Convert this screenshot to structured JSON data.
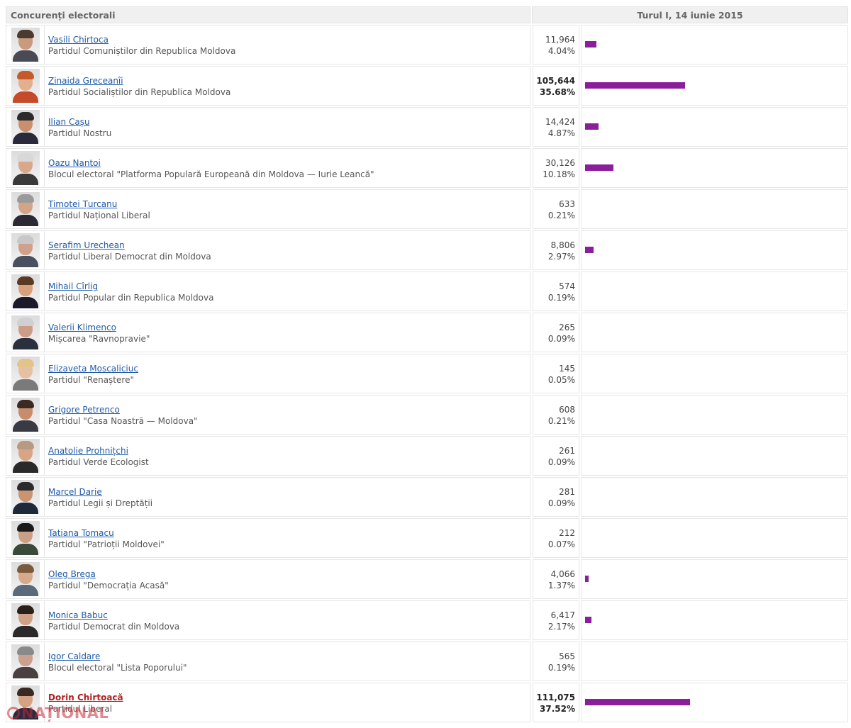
{
  "header": {
    "col_candidates": "Concurenți electorali",
    "col_round": "Turul I, 14 iunie 2015"
  },
  "accent_color": "#8b1e9b",
  "candidates": [
    {
      "name": "Vasili Chirtoca",
      "party": "Partidul Comuniștilor din Republica Moldova",
      "votes": "11,964",
      "percent": "4.04%",
      "share": 4.04,
      "bold": false
    },
    {
      "name": "Zinaida Greceanîi",
      "party": "Partidul Socialiștilor din Republica Moldova",
      "votes": "105,644",
      "percent": "35.68%",
      "share": 35.68,
      "bold": true
    },
    {
      "name": "Ilian Cașu",
      "party": "Partidul Nostru",
      "votes": "14,424",
      "percent": "4.87%",
      "share": 4.87,
      "bold": false
    },
    {
      "name": "Oazu Nantoi",
      "party": "Blocul electoral \"Platforma Populară Europeană din Moldova — Iurie Leancă\"",
      "votes": "30,126",
      "percent": "10.18%",
      "share": 10.18,
      "bold": false
    },
    {
      "name": "Timotei Țurcanu",
      "party": "Partidul Național Liberal",
      "votes": "633",
      "percent": "0.21%",
      "share": 0.21,
      "bold": false
    },
    {
      "name": "Serafim Urechean",
      "party": "Partidul Liberal Democrat din Moldova",
      "votes": "8,806",
      "percent": "2.97%",
      "share": 2.97,
      "bold": false
    },
    {
      "name": "Mihail Cîrlig",
      "party": "Partidul Popular din Republica Moldova",
      "votes": "574",
      "percent": "0.19%",
      "share": 0.19,
      "bold": false
    },
    {
      "name": "Valerii Klimenco",
      "party": "Mișcarea \"Ravnopravie\"",
      "votes": "265",
      "percent": "0.09%",
      "share": 0.09,
      "bold": false
    },
    {
      "name": "Elizaveta Moscaliciuc",
      "party": "Partidul \"Renaștere\"",
      "votes": "145",
      "percent": "0.05%",
      "share": 0.05,
      "bold": false
    },
    {
      "name": "Grigore Petrenco",
      "party": "Partidul \"Casa Noastră — Moldova\"",
      "votes": "608",
      "percent": "0.21%",
      "share": 0.21,
      "bold": false
    },
    {
      "name": "Anatolie Prohnițchi",
      "party": "Partidul Verde Ecologist",
      "votes": "261",
      "percent": "0.09%",
      "share": 0.09,
      "bold": false
    },
    {
      "name": "Marcel Darie",
      "party": "Partidul Legii și Dreptății",
      "votes": "281",
      "percent": "0.09%",
      "share": 0.09,
      "bold": false
    },
    {
      "name": "Tatiana Tomacu",
      "party": "Partidul \"Patrioții Moldovei\"",
      "votes": "212",
      "percent": "0.07%",
      "share": 0.07,
      "bold": false
    },
    {
      "name": "Oleg Brega",
      "party": "Partidul \"Democrația Acasă\"",
      "votes": "4,066",
      "percent": "1.37%",
      "share": 1.37,
      "bold": false
    },
    {
      "name": "Monica Babuc",
      "party": "Partidul Democrat din Moldova",
      "votes": "6,417",
      "percent": "2.17%",
      "share": 2.17,
      "bold": false
    },
    {
      "name": "Igor Caldare",
      "party": "Blocul electoral \"Lista Poporului\"",
      "votes": "565",
      "percent": "0.19%",
      "share": 0.19,
      "bold": false
    },
    {
      "name": "Dorin Chirtoacă",
      "party": "Partidul Liberal",
      "votes": "111,075",
      "percent": "37.52%",
      "share": 37.52,
      "bold": true
    }
  ],
  "watermark": "NAȚIONAL"
}
